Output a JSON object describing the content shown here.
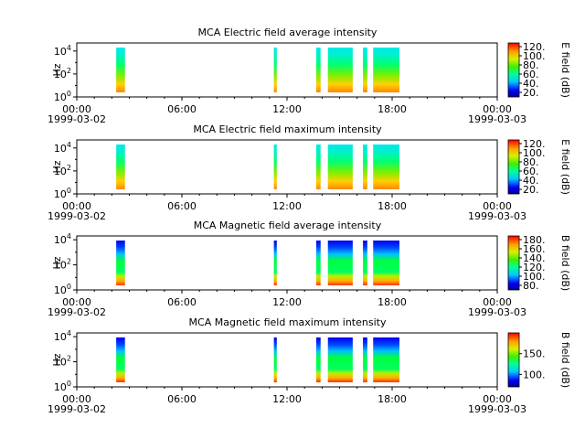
{
  "chart_data": [
    {
      "type": "heatmap",
      "title": "MCA  Electric field average intensity",
      "ylabel": "Hz",
      "yscale": "log",
      "ylim": [
        1,
        50000
      ],
      "ytick_labels": [
        "10^0",
        "10^2",
        "10^4"
      ],
      "xlim": [
        "1999-03-02 00:00",
        "1999-03-03 00:00"
      ],
      "xtick_labels": [
        "00:00",
        "06:00",
        "12:00",
        "18:00",
        "00:00"
      ],
      "xdate_labels": [
        "1999-03-02",
        "1999-03-03"
      ],
      "colorbar": {
        "label": "E field (dB)",
        "ticks": [
          "20.",
          "40.",
          "60.",
          "80.",
          "100.",
          "120."
        ],
        "range": [
          10,
          128
        ]
      },
      "data_intervals": [
        [
          "02:15",
          "02:45"
        ],
        [
          "11:15",
          "11:25"
        ],
        [
          "13:40",
          "13:55"
        ],
        [
          "14:20",
          "15:45"
        ],
        [
          "16:20",
          "16:35"
        ],
        [
          "16:55",
          "18:25"
        ]
      ]
    },
    {
      "type": "heatmap",
      "title": "MCA  Electric field maximum intensity",
      "ylabel": "Hz",
      "yscale": "log",
      "ylim": [
        1,
        50000
      ],
      "ytick_labels": [
        "10^0",
        "10^2",
        "10^4"
      ],
      "xlim": [
        "1999-03-02 00:00",
        "1999-03-03 00:00"
      ],
      "xtick_labels": [
        "00:00",
        "06:00",
        "12:00",
        "18:00",
        "00:00"
      ],
      "xdate_labels": [
        "1999-03-02",
        "1999-03-03"
      ],
      "colorbar": {
        "label": "E field (dB)",
        "ticks": [
          "20.",
          "40.",
          "60.",
          "80.",
          "100.",
          "120."
        ],
        "range": [
          10,
          128
        ]
      },
      "data_intervals": [
        [
          "02:15",
          "02:45"
        ],
        [
          "11:15",
          "11:25"
        ],
        [
          "13:40",
          "13:55"
        ],
        [
          "14:20",
          "15:45"
        ],
        [
          "16:20",
          "16:35"
        ],
        [
          "16:55",
          "18:25"
        ]
      ]
    },
    {
      "type": "heatmap",
      "title": "MCA  Magnetic field average intensity",
      "ylabel": "Hz",
      "yscale": "log",
      "ylim": [
        1,
        20000
      ],
      "ytick_labels": [
        "10^0",
        "10^2",
        "10^4"
      ],
      "xlim": [
        "1999-03-02 00:00",
        "1999-03-03 00:00"
      ],
      "xtick_labels": [
        "00:00",
        "06:00",
        "12:00",
        "18:00",
        "00:00"
      ],
      "xdate_labels": [
        "1999-03-02",
        "1999-03-03"
      ],
      "colorbar": {
        "label": "B field (dB)",
        "ticks": [
          "80.",
          "100.",
          "120.",
          "140.",
          "160.",
          "180."
        ],
        "range": [
          70,
          188
        ]
      },
      "data_intervals": [
        [
          "02:15",
          "02:45"
        ],
        [
          "11:15",
          "11:25"
        ],
        [
          "13:40",
          "13:55"
        ],
        [
          "14:20",
          "15:45"
        ],
        [
          "16:20",
          "16:35"
        ],
        [
          "16:55",
          "18:25"
        ]
      ]
    },
    {
      "type": "heatmap",
      "title": "MCA  Magnetic field maximum intensity",
      "ylabel": "Hz",
      "yscale": "log",
      "ylim": [
        1,
        20000
      ],
      "ytick_labels": [
        "10^0",
        "10^2",
        "10^4"
      ],
      "xlim": [
        "1999-03-02 00:00",
        "1999-03-03 00:00"
      ],
      "xtick_labels": [
        "00:00",
        "06:00",
        "12:00",
        "18:00",
        "00:00"
      ],
      "xdate_labels": [
        "1999-03-02",
        "1999-03-03"
      ],
      "colorbar": {
        "label": "B field (dB)",
        "ticks": [
          "100.",
          "150."
        ],
        "range": [
          70,
          200
        ]
      },
      "data_intervals": [
        [
          "02:15",
          "02:45"
        ],
        [
          "11:15",
          "11:25"
        ],
        [
          "13:40",
          "13:55"
        ],
        [
          "14:20",
          "15:45"
        ],
        [
          "16:20",
          "16:35"
        ],
        [
          "16:55",
          "18:25"
        ]
      ]
    }
  ]
}
